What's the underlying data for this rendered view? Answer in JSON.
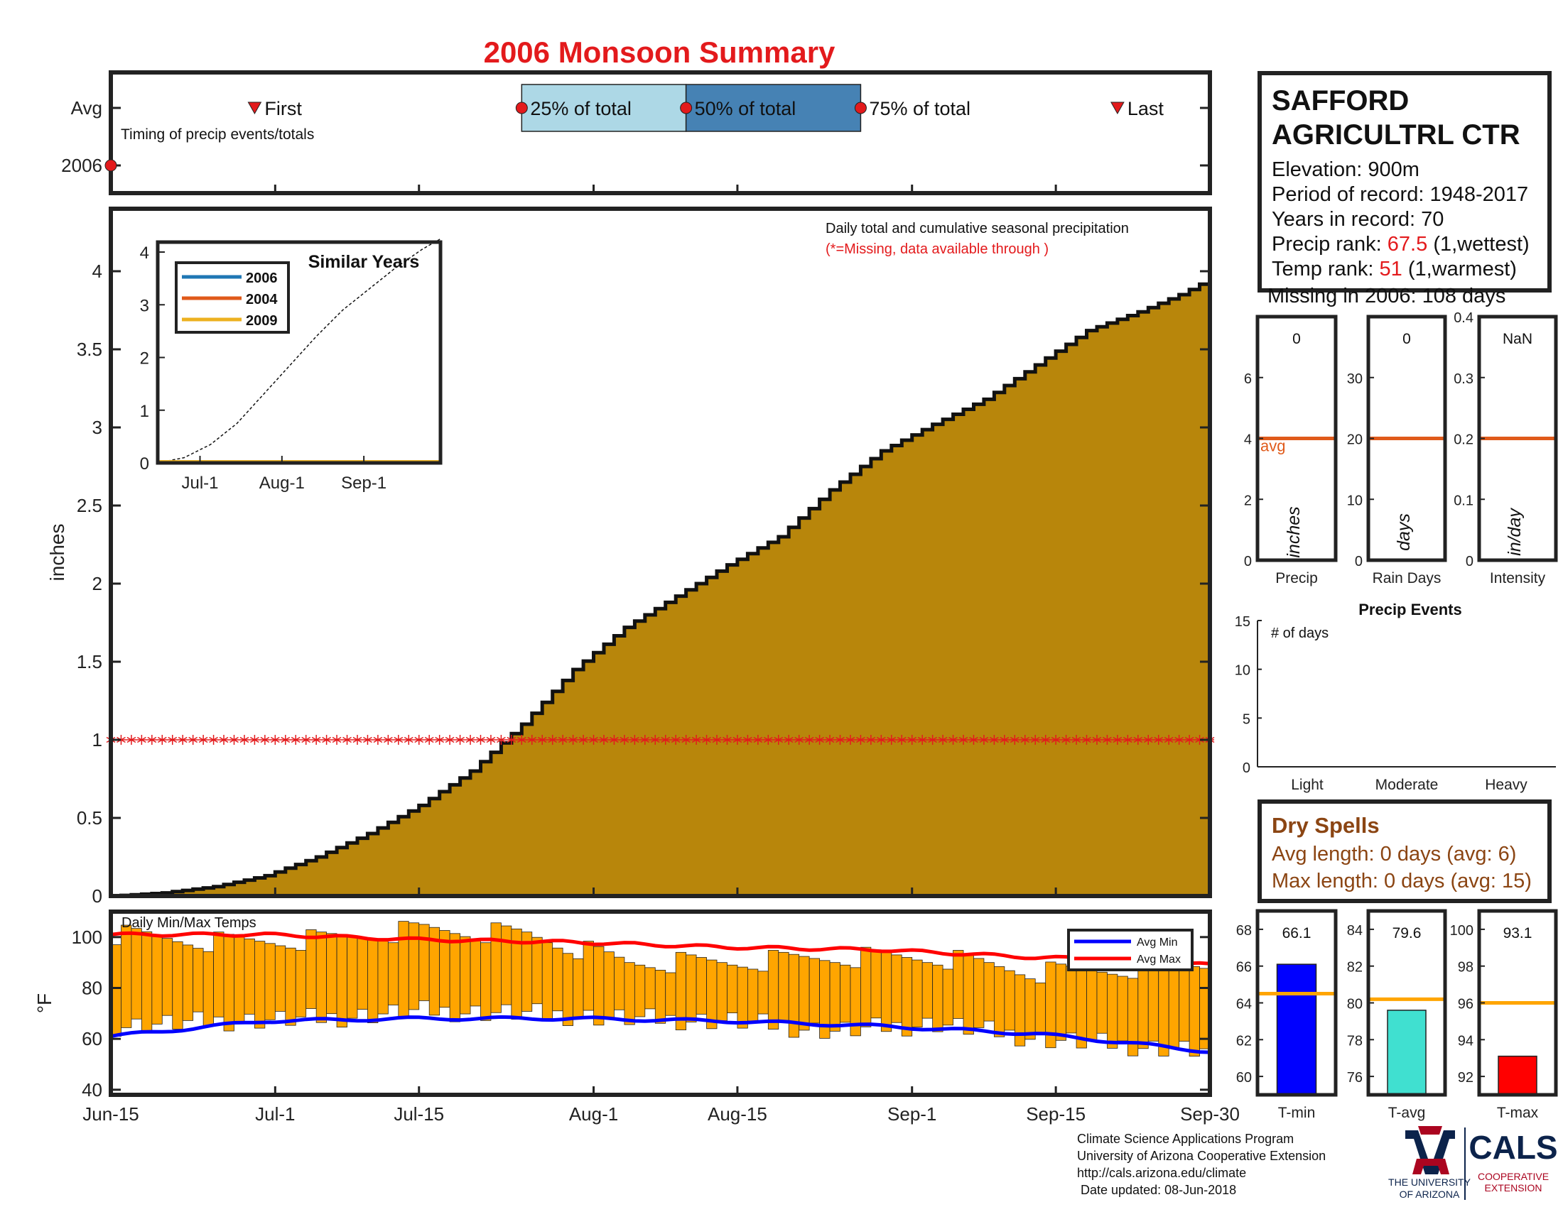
{
  "title": "2006 Monsoon Summary",
  "colors": {
    "title": "#e31a1c",
    "precip_fill": "#b8860b",
    "temp_bar": "#ffa500",
    "avg_min": "#0000ff",
    "avg_max": "#ff0000",
    "missing": "#e31a1c",
    "q25": "#add8e6",
    "q50_75": "#4682b4",
    "avg_line": "#e05a1a",
    "tmin_bar": "#0000ff",
    "tavg_bar": "#40e0d0",
    "tmax_bar": "#ff0000",
    "temp_avg_line": "#ffa500",
    "dry_text": "#8b4513",
    "cals_blue": "#0c234b",
    "ua_red": "#ab0520"
  },
  "timing": {
    "rows": [
      "Avg",
      "2006"
    ],
    "note": "Timing of precip events/totals",
    "first_label": "First",
    "last_label": "Last",
    "q25_label": "25% of total",
    "q50_label": "50% of total",
    "q75_label": "75% of total",
    "first_day": 14,
    "last_day": 98,
    "q25_day": 40,
    "q50_day": 56,
    "q75_day": 73,
    "marker_2006_day": 0
  },
  "station": {
    "name_line1": "SAFFORD",
    "name_line2": "AGRICULTRL CTR",
    "elevation": "Elevation: 900m",
    "period": "Period of record: 1948-2017",
    "years": "Years in record: 70",
    "precip_rank_label": "Precip rank:",
    "precip_rank_value": "67.5",
    "precip_rank_note": "(1,wettest)",
    "temp_rank_label": "Temp rank:",
    "temp_rank_value": "51",
    "temp_rank_note": "(1,warmest)",
    "missing": "Missing in 2006: 108 days"
  },
  "dry_spells": {
    "title": "Dry Spells",
    "avg": "Avg length: 0 days (avg: 6)",
    "max": "Max length: 0 days (avg: 15)"
  },
  "credits": {
    "line1": "Climate Science Applications Program",
    "line2": "University of Arizona Cooperative Extension",
    "line3": "http://cals.arizona.edu/climate",
    "line4": " Date updated: 08-Jun-2018"
  },
  "logo": {
    "ua_line1": "THE UNIVERSITY",
    "ua_line2": "OF ARIZONA",
    "cals": "CALS",
    "cals_line1": "COOPERATIVE",
    "cals_line2": "EXTENSION"
  },
  "chart_data": [
    {
      "id": "main",
      "type": "area",
      "annotation1": "Daily total and cumulative seasonal precipitation",
      "annotation2": "(*=Missing, data available through )",
      "ylabel": "inches",
      "ylim": [
        0,
        4.4
      ],
      "yticks": [
        "0",
        "0.5",
        "1",
        "1.5",
        "2",
        "2.5",
        "3",
        "3.5",
        "4"
      ],
      "xticks": [
        "Jun-15",
        "Jul-1",
        "Jul-15",
        "Aug-1",
        "Aug-15",
        "Sep-1",
        "Sep-15",
        "Sep-30"
      ],
      "xtick_days": [
        0,
        16,
        30,
        47,
        61,
        78,
        92,
        107
      ],
      "x_end_day": 107,
      "cumulative_anchor_days": [
        0,
        5,
        10,
        15,
        20,
        25,
        30,
        35,
        38,
        40,
        45,
        50,
        55,
        60,
        65,
        70,
        75,
        80,
        85,
        90,
        95,
        100,
        104,
        107
      ],
      "cumulative_anchor_values": [
        0,
        0.02,
        0.06,
        0.13,
        0.25,
        0.4,
        0.58,
        0.8,
        0.98,
        1.1,
        1.45,
        1.72,
        1.92,
        2.12,
        2.3,
        2.6,
        2.85,
        3.02,
        3.18,
        3.4,
        3.62,
        3.74,
        3.85,
        3.95
      ],
      "missing_value": 1
    },
    {
      "id": "similar",
      "type": "line",
      "title": "Similar Years",
      "ylim": [
        0,
        4
      ],
      "yticks": [
        "0",
        "1",
        "2",
        "3",
        "4"
      ],
      "xticks": [
        "Jul-1",
        "Aug-1",
        "Sep-1"
      ],
      "xtick_days": [
        16,
        47,
        78
      ],
      "series": [
        {
          "name": "2006",
          "color": "#1f77b4",
          "values": [
            0,
            0
          ]
        },
        {
          "name": "2004",
          "color": "#e05a1a",
          "values": [
            0,
            0
          ]
        },
        {
          "name": "2009",
          "color": "#edb120",
          "values": [
            0,
            0
          ]
        }
      ],
      "avg_anchor_days": [
        0,
        10,
        20,
        30,
        40,
        50,
        60,
        70,
        80,
        90,
        100,
        107
      ],
      "avg_anchor_values": [
        0,
        0.1,
        0.35,
        0.75,
        1.3,
        1.85,
        2.4,
        2.9,
        3.3,
        3.7,
        4.05,
        4.25
      ]
    },
    {
      "id": "temps",
      "type": "bar",
      "title": "Daily Min/Max Temps",
      "ylabel": "°F",
      "ylim": [
        38,
        110
      ],
      "yticks": [
        "40",
        "60",
        "80",
        "100"
      ],
      "legend": [
        "Avg Min",
        "Avg Max"
      ],
      "bar_low_anchor_days": [
        0,
        10,
        20,
        30,
        40,
        50,
        60,
        70,
        80,
        90,
        100,
        107
      ],
      "bar_low_anchor_values": [
        65,
        67,
        68,
        71,
        70,
        68,
        67,
        63,
        66,
        60,
        57,
        55
      ],
      "bar_high_anchor_days": [
        0,
        10,
        20,
        30,
        40,
        50,
        60,
        70,
        80,
        90,
        100,
        107
      ],
      "bar_high_anchor_values": [
        101,
        98,
        99,
        103,
        101,
        90,
        90,
        92,
        92,
        86,
        88,
        90
      ],
      "avg_min_anchor_days": [
        0,
        15,
        30,
        45,
        60,
        75,
        90,
        100,
        107
      ],
      "avg_min_anchor_values": [
        61,
        67,
        68,
        68,
        67,
        65,
        62,
        58,
        55
      ],
      "avg_max_anchor_days": [
        0,
        15,
        30,
        45,
        60,
        75,
        90,
        100,
        107
      ],
      "avg_max_anchor_values": [
        101,
        101,
        99,
        98,
        96,
        95,
        92,
        91,
        89
      ]
    },
    {
      "id": "precip_comp",
      "type": "bar",
      "xlabel": "Precip",
      "value_text": "0",
      "unit": "inches",
      "ylim": [
        0,
        8
      ],
      "yticks": [
        "0",
        "2",
        "4",
        "6"
      ],
      "avg": 4,
      "avg_label": "avg",
      "value": 0
    },
    {
      "id": "raindays_comp",
      "type": "bar",
      "xlabel": "Rain Days",
      "value_text": "0",
      "unit": "days",
      "ylim": [
        0,
        40
      ],
      "yticks": [
        "0",
        "10",
        "20",
        "30"
      ],
      "avg": 20,
      "value": 0
    },
    {
      "id": "intensity_comp",
      "type": "bar",
      "xlabel": "Intensity",
      "value_text": "NaN",
      "unit": "in/day",
      "ylim": [
        0,
        0.4
      ],
      "yticks": [
        "0",
        "0.1",
        "0.2",
        "0.3",
        "0.4"
      ],
      "avg": 0.2,
      "value": 0
    },
    {
      "id": "events",
      "type": "bar",
      "title": "Precip Events",
      "ylabel": "# of days",
      "ylim": [
        0,
        15
      ],
      "yticks": [
        "0",
        "5",
        "10",
        "15"
      ],
      "categories": [
        "Light",
        "Moderate",
        "Heavy"
      ],
      "values": [
        0,
        0,
        0
      ]
    },
    {
      "id": "tmin_comp",
      "type": "bar",
      "xlabel": "T-min",
      "value_text": "66.1",
      "ylim": [
        59,
        69
      ],
      "yticks": [
        "60",
        "62",
        "64",
        "66",
        "68"
      ],
      "value": 66.1,
      "avg": 64.5
    },
    {
      "id": "tavg_comp",
      "type": "bar",
      "xlabel": "T-avg",
      "value_text": "79.6",
      "ylim": [
        75,
        85
      ],
      "yticks": [
        "76",
        "78",
        "80",
        "82",
        "84"
      ],
      "value": 79.6,
      "avg": 80.2
    },
    {
      "id": "tmax_comp",
      "type": "bar",
      "xlabel": "T-max",
      "value_text": "93.1",
      "ylim": [
        91,
        101
      ],
      "yticks": [
        "92",
        "94",
        "96",
        "98",
        "100"
      ],
      "value": 93.1,
      "avg": 96
    }
  ]
}
